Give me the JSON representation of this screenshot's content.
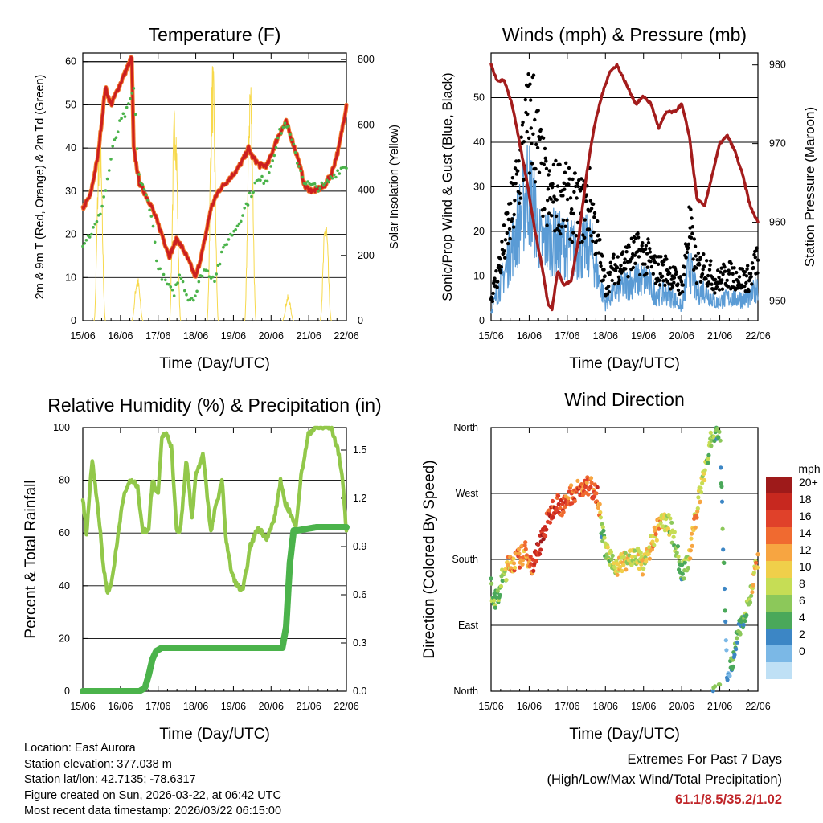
{
  "colors": {
    "t2m": "#cc1f1f",
    "t9m": "#f07a2d",
    "td": "#4ab34a",
    "solar": "#f7d94c",
    "wind": "#5a9bd5",
    "gust": "#000000",
    "pressure": "#a31c1c",
    "rh": "#92c84a",
    "precip": "#4bb34b"
  },
  "day_ticks": [
    "15/06",
    "16/06",
    "17/06",
    "18/06",
    "19/06",
    "20/06",
    "21/06",
    "22/06"
  ],
  "panels": {
    "temp": {
      "title": "Temperature (F)",
      "xlabel": "Time (Day/UTC)",
      "ylabel": "2m & 9m T (Red, Orange) & 2m Td (Green)",
      "y2label": "Solar Insolation (Yellow)",
      "yticks": [
        "0",
        "10",
        "20",
        "30",
        "40",
        "50",
        "60"
      ],
      "y2ticks": [
        "0",
        "200",
        "400",
        "600",
        "800"
      ]
    },
    "winds": {
      "title": "Winds (mph) & Pressure (mb)",
      "xlabel": "Time (Day/UTC)",
      "ylabel": "Sonic/Prop Wind & Gust (Blue, Black)",
      "y2label": "Station Pressure (Maroon)",
      "yticks": [
        "0",
        "10",
        "20",
        "30",
        "40",
        "50"
      ],
      "y2ticks": [
        "950",
        "960",
        "970",
        "980"
      ]
    },
    "rh": {
      "title": "Relative Humidity (%) & Precipitation (in)",
      "xlabel": "Time (Day/UTC)",
      "ylabel": "Percent & Total Rainfall",
      "yticks": [
        "0",
        "20",
        "40",
        "60",
        "80",
        "100"
      ],
      "y2ticks": [
        "0.0",
        "0.3",
        "0.6",
        "0.9",
        "1.2",
        "1.5"
      ]
    },
    "dir": {
      "title": "Wind Direction",
      "xlabel": "Time (Day/UTC)",
      "ylabel": "Direction (Colored By Speed)",
      "yticks": [
        "North",
        "East",
        "South",
        "West",
        "North"
      ],
      "legend_title": "mph",
      "legend_labels": [
        "20+",
        "18",
        "16",
        "14",
        "12",
        "10",
        "8",
        "6",
        "4",
        "2",
        "0"
      ],
      "legend_colors": [
        "#9e1a1a",
        "#c7281f",
        "#e0412a",
        "#f06a30",
        "#f7a541",
        "#f0cf4a",
        "#c6dd55",
        "#8cc85a",
        "#4aa85a",
        "#3c86c5",
        "#7bb8e6",
        "#bfe0f5"
      ]
    }
  },
  "chart_data": [
    {
      "type": "line",
      "title": "Temperature (F)",
      "xlabel": "Time (Day/UTC)",
      "ylabel": "2m & 9m T (Red, Orange) & 2m Td (Green)",
      "y2label": "Solar Insolation (Yellow)",
      "x_range": [
        0,
        7
      ],
      "ylim": [
        0,
        62
      ],
      "y2lim": [
        0,
        820
      ],
      "series": [
        {
          "name": "2m T",
          "axis": "y",
          "x": [
            0,
            0.2,
            0.4,
            0.6,
            0.75,
            0.9,
            1.1,
            1.3,
            1.35,
            1.5,
            1.8,
            2.1,
            2.3,
            2.5,
            2.7,
            2.85,
            3.0,
            3.2,
            3.4,
            3.6,
            3.9,
            4.1,
            4.3,
            4.4,
            4.5,
            4.7,
            4.9,
            5.2,
            5.4,
            5.7,
            5.9,
            6.1,
            6.4,
            6.6,
            6.8,
            7.0
          ],
          "values": [
            26,
            29,
            38,
            54,
            50,
            53,
            57,
            61,
            40,
            32,
            27,
            20,
            15,
            19,
            16,
            13,
            10,
            17,
            26,
            30,
            33,
            35,
            38,
            40,
            38,
            36,
            36,
            43,
            46,
            38,
            31,
            30,
            31,
            34,
            40,
            50
          ]
        },
        {
          "name": "2m Td",
          "axis": "y",
          "x": [
            0,
            0.2,
            0.4,
            0.6,
            0.8,
            1.0,
            1.2,
            1.35,
            1.5,
            1.8,
            2.0,
            2.2,
            2.4,
            2.6,
            2.8,
            3.0,
            3.2,
            3.5,
            3.8,
            4.1,
            4.4,
            4.6,
            4.9,
            5.2,
            5.4,
            5.7,
            5.9,
            6.1,
            6.4,
            6.6,
            6.8,
            7.0
          ],
          "values": [
            18,
            20,
            23,
            30,
            40,
            46,
            49,
            54,
            33,
            26,
            12,
            9,
            6,
            11,
            5,
            6,
            12,
            10,
            18,
            22,
            28,
            32,
            33,
            43,
            46,
            37,
            32,
            31,
            31,
            33,
            35,
            36
          ]
        },
        {
          "name": "Solar",
          "axis": "y2",
          "x": [
            0.3,
            0.45,
            0.6,
            1.3,
            1.45,
            1.6,
            2.3,
            2.45,
            2.6,
            3.3,
            3.45,
            3.6,
            4.3,
            4.45,
            4.6,
            5.3,
            5.45,
            5.6,
            6.3,
            6.45,
            6.6
          ],
          "values": [
            0,
            610,
            0,
            0,
            140,
            0,
            0,
            700,
            0,
            0,
            810,
            0,
            0,
            790,
            0,
            0,
            80,
            0,
            0,
            330,
            0
          ]
        }
      ]
    },
    {
      "type": "line",
      "title": "Winds (mph) & Pressure (mb)",
      "xlabel": "Time (Day/UTC)",
      "ylabel": "Sonic/Prop Wind & Gust (Blue, Black)",
      "y2label": "Station Pressure (Maroon)",
      "x_range": [
        0,
        7
      ],
      "ylim": [
        0,
        60
      ],
      "y2lim": [
        947.5,
        981.5
      ],
      "series": [
        {
          "name": "Gust",
          "axis": "y",
          "x": [
            0,
            0.2,
            0.4,
            0.6,
            0.8,
            0.95,
            1.1,
            1.3,
            1.5,
            1.8,
            2.1,
            2.4,
            2.6,
            2.8,
            3.0,
            3.2,
            3.5,
            3.8,
            4.1,
            4.3,
            4.6,
            4.8,
            5.0,
            5.2,
            5.4,
            5.6,
            5.9,
            6.2,
            6.5,
            6.8,
            7.0
          ],
          "values": [
            5,
            12,
            20,
            28,
            38,
            45,
            48,
            36,
            28,
            30,
            27,
            26,
            28,
            18,
            8,
            12,
            14,
            16,
            15,
            12,
            12,
            10,
            8,
            22,
            12,
            13,
            9,
            11,
            10,
            10,
            15
          ]
        },
        {
          "name": "Wind",
          "axis": "y",
          "x": [
            0,
            0.2,
            0.4,
            0.6,
            0.8,
            0.95,
            1.1,
            1.3,
            1.5,
            1.8,
            2.1,
            2.4,
            2.6,
            2.8,
            3.0,
            3.2,
            3.5,
            3.8,
            4.1,
            4.3,
            4.6,
            4.8,
            5.0,
            5.2,
            5.4,
            5.6,
            5.9,
            6.2,
            6.5,
            6.8,
            7.0
          ],
          "values": [
            2,
            7,
            12,
            18,
            24,
            30,
            26,
            17,
            18,
            17,
            16,
            16,
            17,
            10,
            4,
            6,
            8,
            9,
            9,
            6,
            6,
            5,
            3,
            12,
            6,
            7,
            4,
            5,
            5,
            5,
            8
          ]
        },
        {
          "name": "Pressure",
          "axis": "y2",
          "x": [
            0,
            0.15,
            0.35,
            0.55,
            0.75,
            0.95,
            1.15,
            1.35,
            1.5,
            1.6,
            1.75,
            1.9,
            2.1,
            2.3,
            2.5,
            2.7,
            2.9,
            3.1,
            3.3,
            3.45,
            3.6,
            3.8,
            4.0,
            4.2,
            4.4,
            4.6,
            4.8,
            5.0,
            5.2,
            5.4,
            5.6,
            5.8,
            6.0,
            6.2,
            6.4,
            6.6,
            6.8,
            7.0
          ],
          "values": [
            980,
            978,
            978,
            975,
            970,
            965,
            959,
            954,
            949.5,
            949,
            954,
            952,
            952.5,
            958,
            966,
            972,
            976,
            979,
            980,
            978.5,
            977,
            975,
            976,
            975,
            972,
            974,
            974,
            975,
            971,
            963,
            962,
            966,
            970,
            971,
            969,
            966,
            962,
            960
          ]
        }
      ]
    },
    {
      "type": "line",
      "title": "Relative Humidity (%) & Precipitation (in)",
      "xlabel": "Time (Day/UTC)",
      "ylabel": "Percent & Total Rainfall",
      "x_range": [
        0,
        7
      ],
      "ylim": [
        0,
        100
      ],
      "y2lim": [
        0,
        1.64
      ],
      "series": [
        {
          "name": "RH",
          "axis": "y",
          "x": [
            0,
            0.1,
            0.25,
            0.4,
            0.55,
            0.65,
            0.75,
            0.9,
            1.05,
            1.25,
            1.45,
            1.6,
            1.75,
            1.85,
            2.0,
            2.1,
            2.2,
            2.35,
            2.5,
            2.6,
            2.75,
            2.9,
            3.0,
            3.2,
            3.4,
            3.5,
            3.7,
            3.8,
            3.95,
            4.1,
            4.25,
            4.45,
            4.65,
            4.9,
            5.1,
            5.25,
            5.35,
            5.5,
            5.65,
            5.8,
            6.0,
            6.2,
            6.4,
            6.6,
            6.8,
            6.9,
            7.0
          ],
          "values": [
            73,
            60,
            88,
            70,
            47,
            38,
            40,
            55,
            72,
            80,
            78,
            60,
            62,
            80,
            75,
            97,
            98,
            93,
            60,
            62,
            88,
            65,
            82,
            90,
            60,
            68,
            80,
            58,
            45,
            40,
            38,
            55,
            62,
            58,
            66,
            80,
            72,
            68,
            62,
            82,
            98,
            100,
            100,
            100,
            90,
            80,
            60
          ]
        },
        {
          "name": "Total Precipitation",
          "axis": "y2",
          "x": [
            0,
            1.5,
            1.65,
            1.75,
            1.85,
            1.95,
            2.1,
            3.5,
            5.0,
            5.3,
            5.4,
            5.5,
            5.6,
            5.7,
            6.2,
            6.6,
            7.0
          ],
          "values": [
            0,
            0,
            0.02,
            0.1,
            0.2,
            0.25,
            0.27,
            0.27,
            0.27,
            0.27,
            0.4,
            0.8,
            1.0,
            1.0,
            1.02,
            1.02,
            1.02
          ]
        }
      ]
    },
    {
      "type": "scatter",
      "title": "Wind Direction",
      "xlabel": "Time (Day/UTC)",
      "ylabel": "Direction (Colored By Speed)",
      "x_range": [
        0,
        7
      ],
      "ylim": [
        0,
        360
      ],
      "yticks": [
        "North",
        "East",
        "South",
        "West",
        "North"
      ],
      "color_by": "Wind speed (mph)",
      "legend": [
        "20+",
        "18",
        "16",
        "14",
        "12",
        "10",
        "8",
        "6",
        "4",
        "2",
        "0"
      ],
      "series": [
        {
          "name": "Direction",
          "x": [
            0,
            0.15,
            0.3,
            0.5,
            0.7,
            0.9,
            1.1,
            1.3,
            1.5,
            1.7,
            1.9,
            2.1,
            2.3,
            2.6,
            2.8,
            2.9,
            3.0,
            3.2,
            3.4,
            3.6,
            3.8,
            4.0,
            4.2,
            4.4,
            4.6,
            4.8,
            5.0,
            5.2,
            5.4,
            5.6,
            5.8,
            6.0,
            6.2,
            6.4,
            6.6,
            6.8,
            7.0
          ],
          "values": [
            140,
            120,
            155,
            175,
            180,
            190,
            170,
            205,
            235,
            260,
            250,
            270,
            275,
            280,
            270,
            220,
            195,
            170,
            175,
            180,
            185,
            170,
            200,
            225,
            235,
            210,
            160,
            180,
            250,
            300,
            350,
            360,
            10,
            60,
            100,
            130,
            180
          ],
          "speed": [
            6,
            5,
            7,
            12,
            14,
            12,
            16,
            18,
            16,
            17,
            15,
            14,
            16,
            15,
            16,
            4,
            6,
            8,
            10,
            9,
            8,
            9,
            10,
            12,
            8,
            6,
            4,
            10,
            12,
            8,
            6,
            4,
            2,
            3,
            4,
            8,
            12
          ]
        }
      ]
    }
  ],
  "info": {
    "location": "Location: East Aurora",
    "elevation": "Station elevation: 377.038 m",
    "latlon": "Station lat/lon: 42.7135; -78.6317",
    "created": "Figure created on Sun, 2026-03-22, at 06:42 UTC",
    "recent": "Most recent data timestamp: 2026/03/22 06:15:00"
  },
  "extremes": {
    "line1": "Extremes For Past 7 Days",
    "line2": "(High/Low/Max Wind/Total Precipitation)",
    "values": "61.1/8.5/35.2/1.02"
  }
}
